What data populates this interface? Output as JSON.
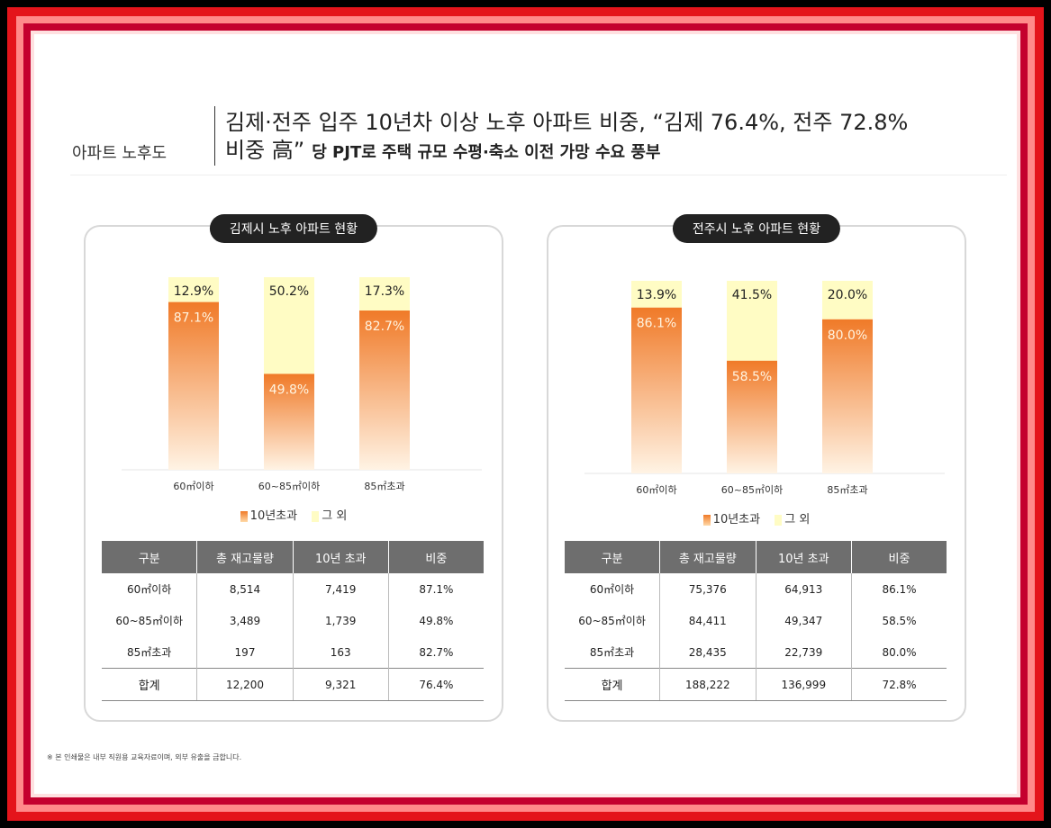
{
  "header": {
    "section_label": "아파트 노후도",
    "headline_line1": "김제·전주 입주 10년차 이상 노후 아파트 비중, “김제 76.4%, 전주 72.8%",
    "headline_line2": "비중 高”",
    "headline_sub": "당 PJT로 주택 규모 수평·축소 이전 가망 수요 풍부"
  },
  "colors": {
    "over10": "#f07a28",
    "other": "#fffcc4",
    "header_bg": "#6e6e6e"
  },
  "chart_data": [
    {
      "type": "bar",
      "title": "김제시 노후 아파트 현황",
      "stacked": true,
      "categories": [
        "60㎡이하",
        "60~85㎡이하",
        "85㎡초과"
      ],
      "series": [
        {
          "name": "10년초과",
          "values": [
            87.1,
            49.8,
            82.7
          ],
          "labels": [
            "87.1%",
            "49.8%",
            "82.7%"
          ]
        },
        {
          "name": "그 외",
          "values": [
            12.9,
            50.2,
            17.3
          ],
          "labels": [
            "12.9%",
            "50.2%",
            "17.3%"
          ]
        }
      ],
      "ylim": [
        0,
        100
      ]
    },
    {
      "type": "bar",
      "title": "전주시 노후 아파트 현황",
      "stacked": true,
      "categories": [
        "60㎡이하",
        "60~85㎡이하",
        "85㎡초과"
      ],
      "series": [
        {
          "name": "10년초과",
          "values": [
            86.1,
            58.5,
            80.0
          ],
          "labels": [
            "86.1%",
            "58.5%",
            "80.0%"
          ]
        },
        {
          "name": "그 외",
          "values": [
            13.9,
            41.5,
            20.0
          ],
          "labels": [
            "13.9%",
            "41.5%",
            "20.0%"
          ]
        }
      ],
      "ylim": [
        0,
        100
      ]
    }
  ],
  "tables": [
    {
      "headers": [
        "구분",
        "총 재고물량",
        "10년 초과",
        "비중"
      ],
      "rows": [
        [
          "60㎡이하",
          "8,514",
          "7,419",
          "87.1%"
        ],
        [
          "60~85㎡이하",
          "3,489",
          "1,739",
          "49.8%"
        ],
        [
          "85㎡초과",
          "197",
          "163",
          "82.7%"
        ]
      ],
      "total": [
        "합계",
        "12,200",
        "9,321",
        "76.4%"
      ]
    },
    {
      "headers": [
        "구분",
        "총 재고물량",
        "10년 초과",
        "비중"
      ],
      "rows": [
        [
          "60㎡이하",
          "75,376",
          "64,913",
          "86.1%"
        ],
        [
          "60~85㎡이하",
          "84,411",
          "49,347",
          "58.5%"
        ],
        [
          "85㎡초과",
          "28,435",
          "22,739",
          "80.0%"
        ]
      ],
      "total": [
        "합계",
        "188,222",
        "136,999",
        "72.8%"
      ]
    }
  ],
  "footnote": "※ 본 인쇄물은 내부 직원용 교육자료이며, 외부 유출을 금합니다."
}
